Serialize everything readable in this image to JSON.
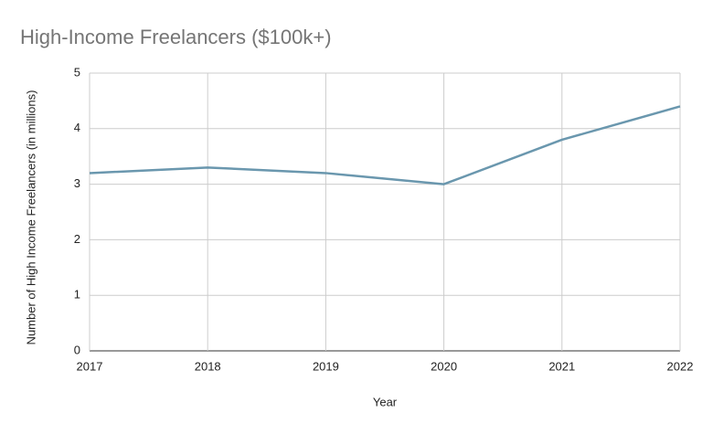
{
  "chart_data": {
    "type": "line",
    "title": "High-Income Freelancers ($100k+)",
    "x_label": "Year",
    "y_label": "Number of High Income Freelancers (in millions)",
    "x": [
      2017,
      2018,
      2019,
      2020,
      2021,
      2022
    ],
    "values": [
      3.2,
      3.3,
      3.2,
      3.0,
      3.8,
      4.4
    ],
    "color": "#6a97ae",
    "xlim": [
      2017,
      2022
    ],
    "xticks": [
      2017,
      2018,
      2019,
      2020,
      2021,
      2022
    ],
    "ylim": [
      0,
      5
    ],
    "yticks": [
      0,
      1,
      2,
      3,
      4,
      5
    ],
    "grid": true
  }
}
